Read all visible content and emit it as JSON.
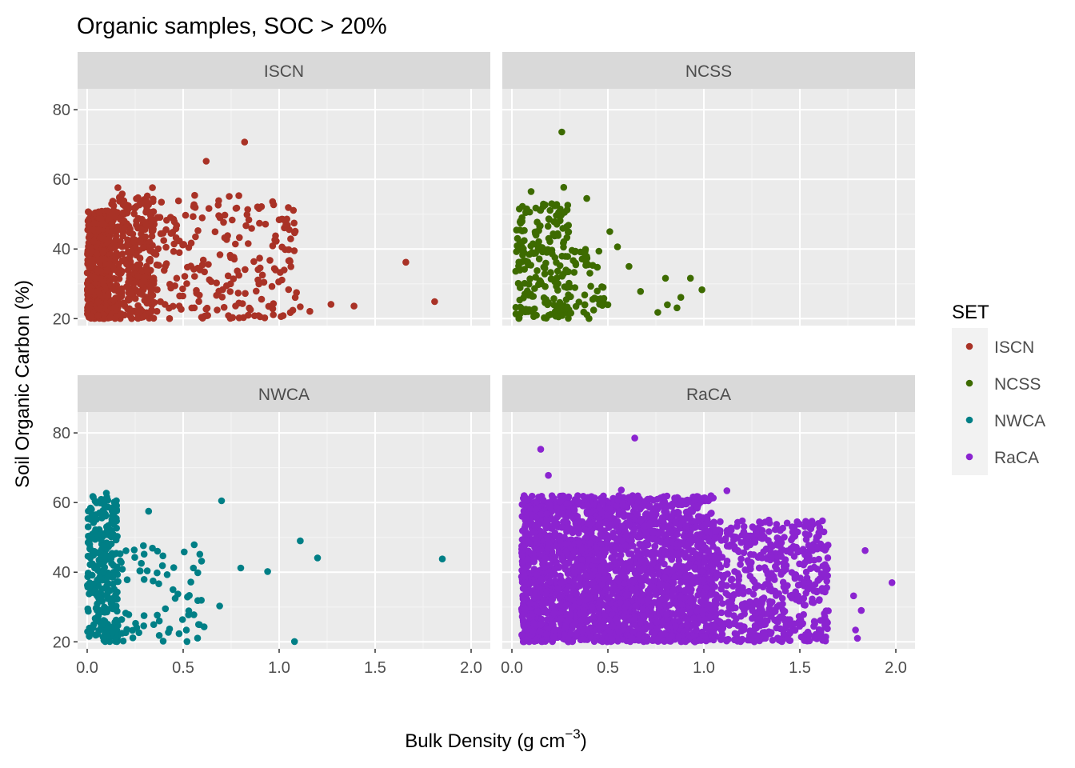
{
  "chart_data": {
    "type": "scatter",
    "title": "Organic samples, SOC > 20%",
    "xlabel": "Bulk Density (g cm",
    "xlabel_superscript": "−3",
    "xlabel_suffix": ")",
    "ylabel": "Soil Organic Carbon (%)",
    "xlim": [
      -0.05,
      2.1
    ],
    "ylim": [
      18,
      86
    ],
    "x_ticks": [
      0.0,
      0.5,
      1.0,
      1.5,
      2.0
    ],
    "x_tick_labels": [
      "0.0",
      "0.5",
      "1.0",
      "1.5",
      "2.0"
    ],
    "y_ticks": [
      20,
      40,
      60,
      80
    ],
    "y_tick_labels": [
      "20",
      "40",
      "60",
      "80"
    ],
    "legend": {
      "title": "SET",
      "position": "right",
      "entries": [
        {
          "label": "ISCN",
          "color": "#A93226"
        },
        {
          "label": "NCSS",
          "color": "#3D6B00"
        },
        {
          "label": "NWCA",
          "color": "#007F86"
        },
        {
          "label": "RaCA",
          "color": "#8B24D0"
        }
      ]
    },
    "panels": [
      {
        "name": "ISCN",
        "color": "#A93226",
        "highlighted_points": [
          [
            0.82,
            70.7
          ],
          [
            0.62,
            65.2
          ],
          [
            1.66,
            36.2
          ],
          [
            1.81,
            24.9
          ],
          [
            1.39,
            23.6
          ],
          [
            1.27,
            24.1
          ],
          [
            1.16,
            22.1
          ],
          [
            1.11,
            23.4
          ],
          [
            1.01,
            20.6
          ],
          [
            1.05,
            39.8
          ],
          [
            1.05,
            36.6
          ],
          [
            1.06,
            42.9
          ],
          [
            1.0,
            48.4
          ],
          [
            0.79,
            55.3
          ],
          [
            0.74,
            55.1
          ],
          [
            0.56,
            55.4
          ],
          [
            0.16,
            57.6
          ],
          [
            0.34,
            57.6
          ],
          [
            0.97,
            24.3
          ]
        ],
        "bulk": [
          {
            "x_range": [
              0.0,
              0.12
            ],
            "y_range": [
              20,
              51
            ],
            "n": 420
          },
          {
            "x_range": [
              0.12,
              0.35
            ],
            "y_range": [
              20,
              56
            ],
            "n": 350
          },
          {
            "x_range": [
              0.35,
              1.1
            ],
            "y_range": [
              20,
              54
            ],
            "n": 200
          }
        ]
      },
      {
        "name": "NCSS",
        "color": "#3D6B00",
        "highlighted_points": [
          [
            0.26,
            73.6
          ],
          [
            0.27,
            57.7
          ],
          [
            0.39,
            54.5
          ],
          [
            0.1,
            56.5
          ],
          [
            0.51,
            45.0
          ],
          [
            0.55,
            40.6
          ],
          [
            0.61,
            35.0
          ],
          [
            0.67,
            27.8
          ],
          [
            0.8,
            31.6
          ],
          [
            0.93,
            31.6
          ],
          [
            0.99,
            28.3
          ],
          [
            0.88,
            26.1
          ],
          [
            0.76,
            21.8
          ],
          [
            0.81,
            24.0
          ],
          [
            0.86,
            23.1
          ],
          [
            0.5,
            24.0
          ]
        ],
        "bulk": [
          {
            "x_range": [
              0.02,
              0.3
            ],
            "y_range": [
              20,
              53
            ],
            "n": 200
          },
          {
            "x_range": [
              0.28,
              0.48
            ],
            "y_range": [
              20,
              40
            ],
            "n": 50
          }
        ]
      },
      {
        "name": "NWCA",
        "color": "#007F86",
        "highlighted_points": [
          [
            0.7,
            60.5
          ],
          [
            1.85,
            43.8
          ],
          [
            1.11,
            49.0
          ],
          [
            1.2,
            44.1
          ],
          [
            0.8,
            41.2
          ],
          [
            0.94,
            40.2
          ],
          [
            1.08,
            20.1
          ],
          [
            0.32,
            57.5
          ],
          [
            0.34,
            46.9
          ],
          [
            0.69,
            30.3
          ],
          [
            0.52,
            20.1
          ],
          [
            0.1,
            62.7
          ]
        ],
        "bulk": [
          {
            "x_range": [
              0.0,
              0.16
            ],
            "y_range": [
              20,
              62
            ],
            "n": 270
          },
          {
            "x_range": [
              0.16,
              0.62
            ],
            "y_range": [
              20,
              48
            ],
            "n": 70
          }
        ]
      },
      {
        "name": "RaCA",
        "color": "#8B24D0",
        "highlighted_points": [
          [
            0.64,
            78.5
          ],
          [
            0.15,
            75.3
          ],
          [
            0.19,
            67.8
          ],
          [
            0.57,
            63.6
          ],
          [
            1.12,
            63.4
          ],
          [
            1.84,
            46.2
          ],
          [
            1.98,
            37.0
          ],
          [
            1.55,
            20.3
          ],
          [
            1.78,
            33.2
          ],
          [
            1.82,
            29.0
          ],
          [
            1.79,
            23.4
          ],
          [
            1.8,
            21.0
          ],
          [
            1.61,
            51.8
          ]
        ],
        "bulk": [
          {
            "x_range": [
              0.05,
              0.45
            ],
            "y_range": [
              20,
              62
            ],
            "n": 1100
          },
          {
            "x_range": [
              0.45,
              1.05
            ],
            "y_range": [
              20,
              62
            ],
            "n": 1500
          },
          {
            "x_range": [
              1.05,
              1.65
            ],
            "y_range": [
              20,
              55
            ],
            "n": 550
          }
        ]
      }
    ]
  }
}
